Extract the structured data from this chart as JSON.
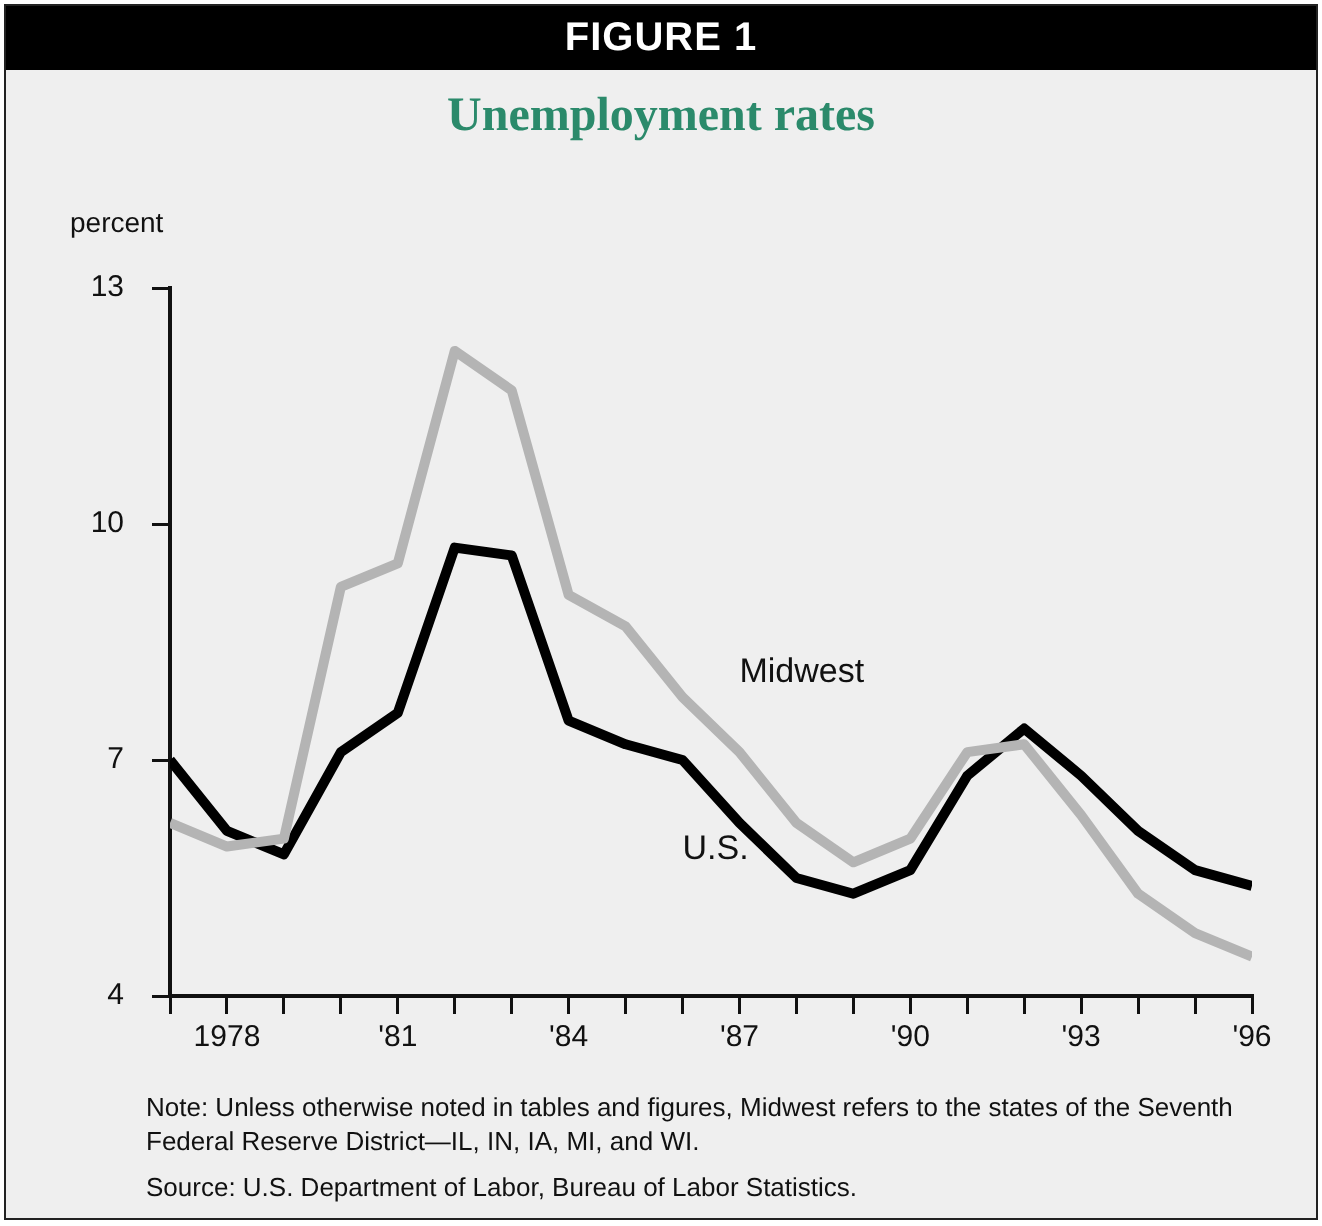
{
  "chart_data": {
    "type": "line",
    "title": "Unemployment rates",
    "ylabel": "percent",
    "x": [
      1977,
      1978,
      1979,
      1980,
      1981,
      1982,
      1983,
      1984,
      1985,
      1986,
      1987,
      1988,
      1989,
      1990,
      1991,
      1992,
      1993,
      1994,
      1995,
      1996
    ],
    "series": [
      {
        "name": "Midwest",
        "color": "#b4b4b4",
        "values": [
          6.2,
          5.9,
          6.0,
          9.2,
          9.5,
          12.2,
          11.7,
          9.1,
          8.7,
          7.8,
          7.1,
          6.2,
          5.7,
          6.0,
          7.1,
          7.2,
          6.3,
          5.3,
          4.8,
          4.5
        ]
      },
      {
        "name": "U.S.",
        "color": "#000000",
        "values": [
          7.0,
          6.1,
          5.8,
          7.1,
          7.6,
          9.7,
          9.6,
          7.5,
          7.2,
          7.0,
          6.2,
          5.5,
          5.3,
          5.6,
          6.8,
          7.4,
          6.8,
          6.1,
          5.6,
          5.4
        ]
      }
    ],
    "xlim": [
      1977,
      1996
    ],
    "xticks": [
      {
        "value": 1977,
        "label": null
      },
      {
        "value": 1978,
        "label": "1978"
      },
      {
        "value": 1979,
        "label": null
      },
      {
        "value": 1980,
        "label": null
      },
      {
        "value": 1981,
        "label": "'81"
      },
      {
        "value": 1982,
        "label": null
      },
      {
        "value": 1983,
        "label": null
      },
      {
        "value": 1984,
        "label": "'84"
      },
      {
        "value": 1985,
        "label": null
      },
      {
        "value": 1986,
        "label": null
      },
      {
        "value": 1987,
        "label": "'87"
      },
      {
        "value": 1988,
        "label": null
      },
      {
        "value": 1989,
        "label": null
      },
      {
        "value": 1990,
        "label": "'90"
      },
      {
        "value": 1991,
        "label": null
      },
      {
        "value": 1992,
        "label": null
      },
      {
        "value": 1993,
        "label": "'93"
      },
      {
        "value": 1994,
        "label": null
      },
      {
        "value": 1995,
        "label": null
      },
      {
        "value": 1996,
        "label": "'96"
      }
    ],
    "ylim": [
      4,
      13
    ],
    "yticks": [
      4,
      7,
      10,
      13
    ],
    "legend": false,
    "marker": "none",
    "line_style": "solid",
    "annotations": [
      "FIGURE 1",
      "Note: Unless otherwise noted in tables and figures, Midwest refers to the states of the Seventh Federal Reserve District—IL, IN, IA, MI, and WI.",
      "Source: U.S. Department of Labor, Bureau of Labor Statistics."
    ]
  }
}
